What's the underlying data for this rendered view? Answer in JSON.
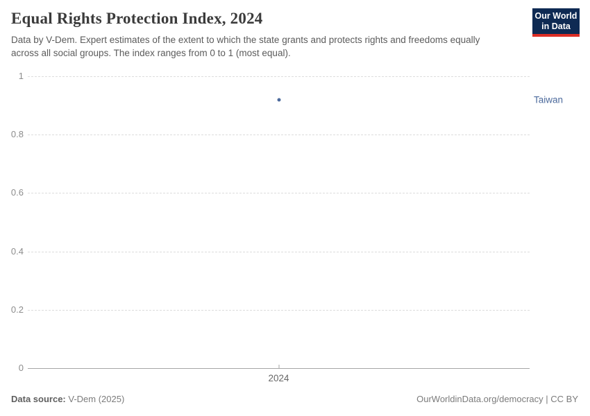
{
  "header": {
    "title": "Equal Rights Protection Index, 2024",
    "subtitle": "Data by V-Dem. Expert estimates of the extent to which the state grants and protects rights and freedoms equally across all social groups. The index ranges from 0 to 1 (most equal).",
    "logo": {
      "line1": "Our World",
      "line2": "in Data"
    }
  },
  "chart_data": {
    "type": "scatter",
    "title": "Equal Rights Protection Index, 2024",
    "x": [
      2024
    ],
    "xtick_labels": [
      "2024"
    ],
    "series": [
      {
        "name": "Taiwan",
        "values": [
          0.92
        ],
        "color": "#4c6a9c"
      }
    ],
    "ylim": [
      0,
      1
    ],
    "yticks": [
      0,
      0.2,
      0.4,
      0.6,
      0.8,
      1
    ],
    "xlabel": "",
    "ylabel": "",
    "grid": "horizontal-dashed",
    "legend_position": "right-of-point"
  },
  "footer": {
    "source_label": "Data source:",
    "source_value": "V-Dem (2025)",
    "credit": "OurWorldinData.org/democracy | CC BY"
  },
  "colors": {
    "accent_blue": "#4c6a9c",
    "logo_navy": "#0e2a53",
    "logo_red": "#dc2e26",
    "gridline": "#dcdcdc",
    "axis": "#a5a5a5"
  }
}
